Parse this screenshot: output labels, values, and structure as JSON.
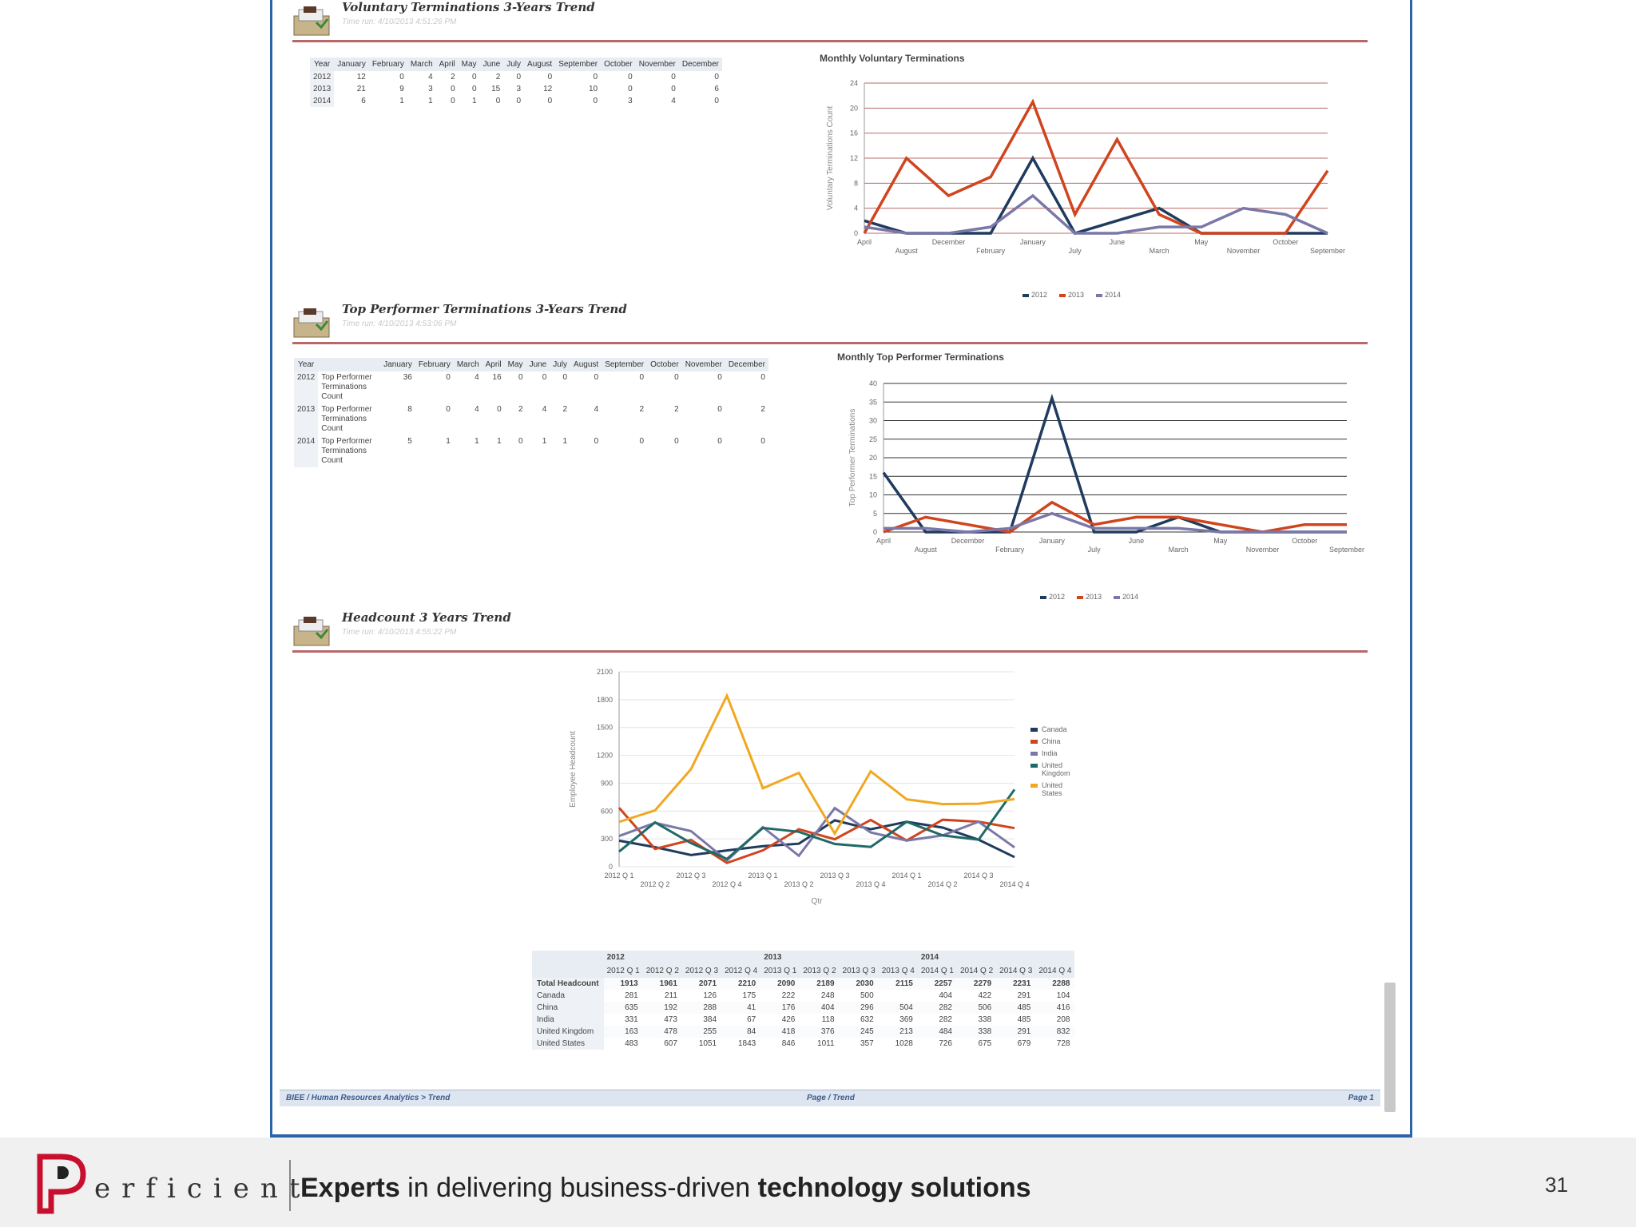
{
  "sections": {
    "voluntary": {
      "title": "Voluntary Terminations 3-Years Trend",
      "time_run": "Time run: 4/10/2013 4:51:26 PM"
    },
    "top_performer": {
      "title": "Top Performer Terminations 3-Years Trend",
      "time_run": "Time run: 4/10/2013 4:53:06 PM"
    },
    "headcount": {
      "title": "Headcount 3 Years Trend",
      "time_run": "Time run: 4/10/2013 4:55:22 PM"
    }
  },
  "vol_table": {
    "header_year": "Year",
    "months": [
      "January",
      "February",
      "March",
      "April",
      "May",
      "June",
      "July",
      "August",
      "September",
      "October",
      "November",
      "December"
    ],
    "rows": [
      {
        "year": "2012",
        "values": [
          "12",
          "0",
          "4",
          "2",
          "0",
          "2",
          "0",
          "0",
          "0",
          "0",
          "0",
          "0"
        ]
      },
      {
        "year": "2013",
        "values": [
          "21",
          "9",
          "3",
          "0",
          "0",
          "15",
          "3",
          "12",
          "10",
          "0",
          "0",
          "6"
        ]
      },
      {
        "year": "2014",
        "values": [
          "6",
          "1",
          "1",
          "0",
          "1",
          "0",
          "0",
          "0",
          "0",
          "3",
          "4",
          "0"
        ]
      }
    ]
  },
  "tp_table": {
    "header_year": "Year",
    "measure": "Top Performer Terminations Count",
    "months": [
      "January",
      "February",
      "March",
      "April",
      "May",
      "June",
      "July",
      "August",
      "September",
      "October",
      "November",
      "December"
    ],
    "rows": [
      {
        "year": "2012",
        "values": [
          "36",
          "0",
          "4",
          "16",
          "0",
          "0",
          "0",
          "0",
          "0",
          "0",
          "0",
          "0"
        ]
      },
      {
        "year": "2013",
        "values": [
          "8",
          "0",
          "4",
          "0",
          "2",
          "4",
          "2",
          "4",
          "2",
          "2",
          "0",
          "2"
        ]
      },
      {
        "year": "2014",
        "values": [
          "5",
          "1",
          "1",
          "1",
          "0",
          "1",
          "1",
          "0",
          "0",
          "0",
          "0",
          "0"
        ]
      }
    ]
  },
  "chart_data": [
    {
      "type": "line",
      "title": "Monthly Voluntary Terminations",
      "ylabel": "Voluntary Terminations Count",
      "ylim": [
        0,
        24
      ],
      "yticks": [
        0,
        4,
        8,
        12,
        16,
        20,
        24
      ],
      "categories": [
        "April",
        "August",
        "December",
        "February",
        "January",
        "July",
        "June",
        "March",
        "May",
        "November",
        "October",
        "September"
      ],
      "series": [
        {
          "name": "2012",
          "color": "#1f3b5e",
          "values": [
            2,
            0,
            0,
            0,
            12,
            0,
            2,
            4,
            0,
            0,
            0,
            0
          ]
        },
        {
          "name": "2013",
          "color": "#d0441e",
          "values": [
            0,
            12,
            6,
            9,
            21,
            3,
            15,
            3,
            0,
            0,
            0,
            10
          ]
        },
        {
          "name": "2014",
          "color": "#7a78a8",
          "values": [
            1,
            0,
            0,
            1,
            6,
            0,
            0,
            1,
            1,
            4,
            3,
            0
          ]
        }
      ],
      "legend": "bottom"
    },
    {
      "type": "line",
      "title": "Monthly Top Performer Terminations",
      "ylabel": "Top Performer Terminations",
      "ylim": [
        0,
        40
      ],
      "yticks": [
        0,
        5,
        10,
        15,
        20,
        25,
        30,
        35,
        40
      ],
      "categories": [
        "April",
        "August",
        "December",
        "February",
        "January",
        "July",
        "June",
        "March",
        "May",
        "November",
        "October",
        "September"
      ],
      "series": [
        {
          "name": "2012",
          "color": "#1f3b5e",
          "values": [
            16,
            0,
            0,
            0,
            36,
            0,
            0,
            4,
            0,
            0,
            0,
            0
          ]
        },
        {
          "name": "2013",
          "color": "#d0441e",
          "values": [
            0,
            4,
            2,
            0,
            8,
            2,
            4,
            4,
            2,
            0,
            2,
            2
          ]
        },
        {
          "name": "2014",
          "color": "#7a78a8",
          "values": [
            1,
            1,
            0,
            1,
            5,
            1,
            1,
            1,
            0,
            0,
            0,
            0
          ]
        }
      ],
      "legend": "bottom"
    },
    {
      "type": "line",
      "ylabel": "Employee Headcount",
      "xlabel": "Qtr",
      "ylim": [
        0,
        2100
      ],
      "yticks": [
        0,
        300,
        600,
        900,
        1200,
        1500,
        1800,
        2100
      ],
      "categories": [
        "2012 Q 1",
        "2012 Q 2",
        "2012 Q 3",
        "2012 Q 4",
        "2013 Q 1",
        "2013 Q 2",
        "2013 Q 3",
        "2013 Q 4",
        "2014 Q 1",
        "2014 Q 2",
        "2014 Q 3",
        "2014 Q 4"
      ],
      "series": [
        {
          "name": "Canada",
          "color": "#1f3b5e",
          "values": [
            281,
            211,
            126,
            175,
            222,
            248,
            500,
            404,
            484,
            422,
            291,
            104
          ]
        },
        {
          "name": "China",
          "color": "#d0441e",
          "values": [
            635,
            192,
            288,
            41,
            176,
            404,
            296,
            504,
            282,
            506,
            485,
            416
          ]
        },
        {
          "name": "India",
          "color": "#7a78a8",
          "values": [
            331,
            473,
            384,
            67,
            426,
            118,
            632,
            369,
            282,
            338,
            485,
            208
          ]
        },
        {
          "name": "United Kingdom",
          "color": "#1f6a66",
          "values": [
            163,
            478,
            255,
            84,
            418,
            376,
            245,
            213,
            484,
            338,
            291,
            832
          ]
        },
        {
          "name": "United States",
          "color": "#f0a820",
          "values": [
            483,
            607,
            1051,
            1843,
            846,
            1011,
            357,
            1028,
            726,
            675,
            679,
            728
          ]
        }
      ],
      "legend": "right"
    }
  ],
  "hc_table": {
    "years": [
      "2012",
      "2013",
      "2014"
    ],
    "quarters": [
      "2012 Q 1",
      "2012 Q 2",
      "2012 Q 3",
      "2012 Q 4",
      "2013 Q 1",
      "2013 Q 2",
      "2013 Q 3",
      "2013 Q 4",
      "2014 Q 1",
      "2014 Q 2",
      "2014 Q 3",
      "2014 Q 4"
    ],
    "total_label": "Total Headcount",
    "total": [
      "1913",
      "1961",
      "2071",
      "2210",
      "2090",
      "2189",
      "2030",
      "2115",
      "2257",
      "2279",
      "2231",
      "2288"
    ],
    "rows": [
      {
        "name": "Canada",
        "values": [
          "281",
          "211",
          "126",
          "175",
          "222",
          "248",
          "500",
          "",
          "404",
          "422",
          "291",
          "104"
        ]
      },
      {
        "name": "China",
        "values": [
          "635",
          "192",
          "288",
          "41",
          "176",
          "404",
          "296",
          "504",
          "282",
          "506",
          "485",
          "416"
        ]
      },
      {
        "name": "India",
        "values": [
          "331",
          "473",
          "384",
          "67",
          "426",
          "118",
          "632",
          "369",
          "282",
          "338",
          "485",
          "208"
        ]
      },
      {
        "name": "United Kingdom",
        "values": [
          "163",
          "478",
          "255",
          "84",
          "418",
          "376",
          "245",
          "213",
          "484",
          "338",
          "291",
          "832"
        ]
      },
      {
        "name": "United States",
        "values": [
          "483",
          "607",
          "1051",
          "1843",
          "846",
          "1011",
          "357",
          "1028",
          "726",
          "675",
          "679",
          "728"
        ]
      }
    ]
  },
  "status_bar": {
    "left": "BIEE / Human Resources Analytics > Trend",
    "center": "Page / Trend",
    "right": "Page 1"
  },
  "footer": {
    "logo_text": "erficient",
    "tagline_1": "Experts",
    "tagline_2": " in delivering business-driven ",
    "tagline_3": "technology solutions",
    "page_number": "31"
  }
}
